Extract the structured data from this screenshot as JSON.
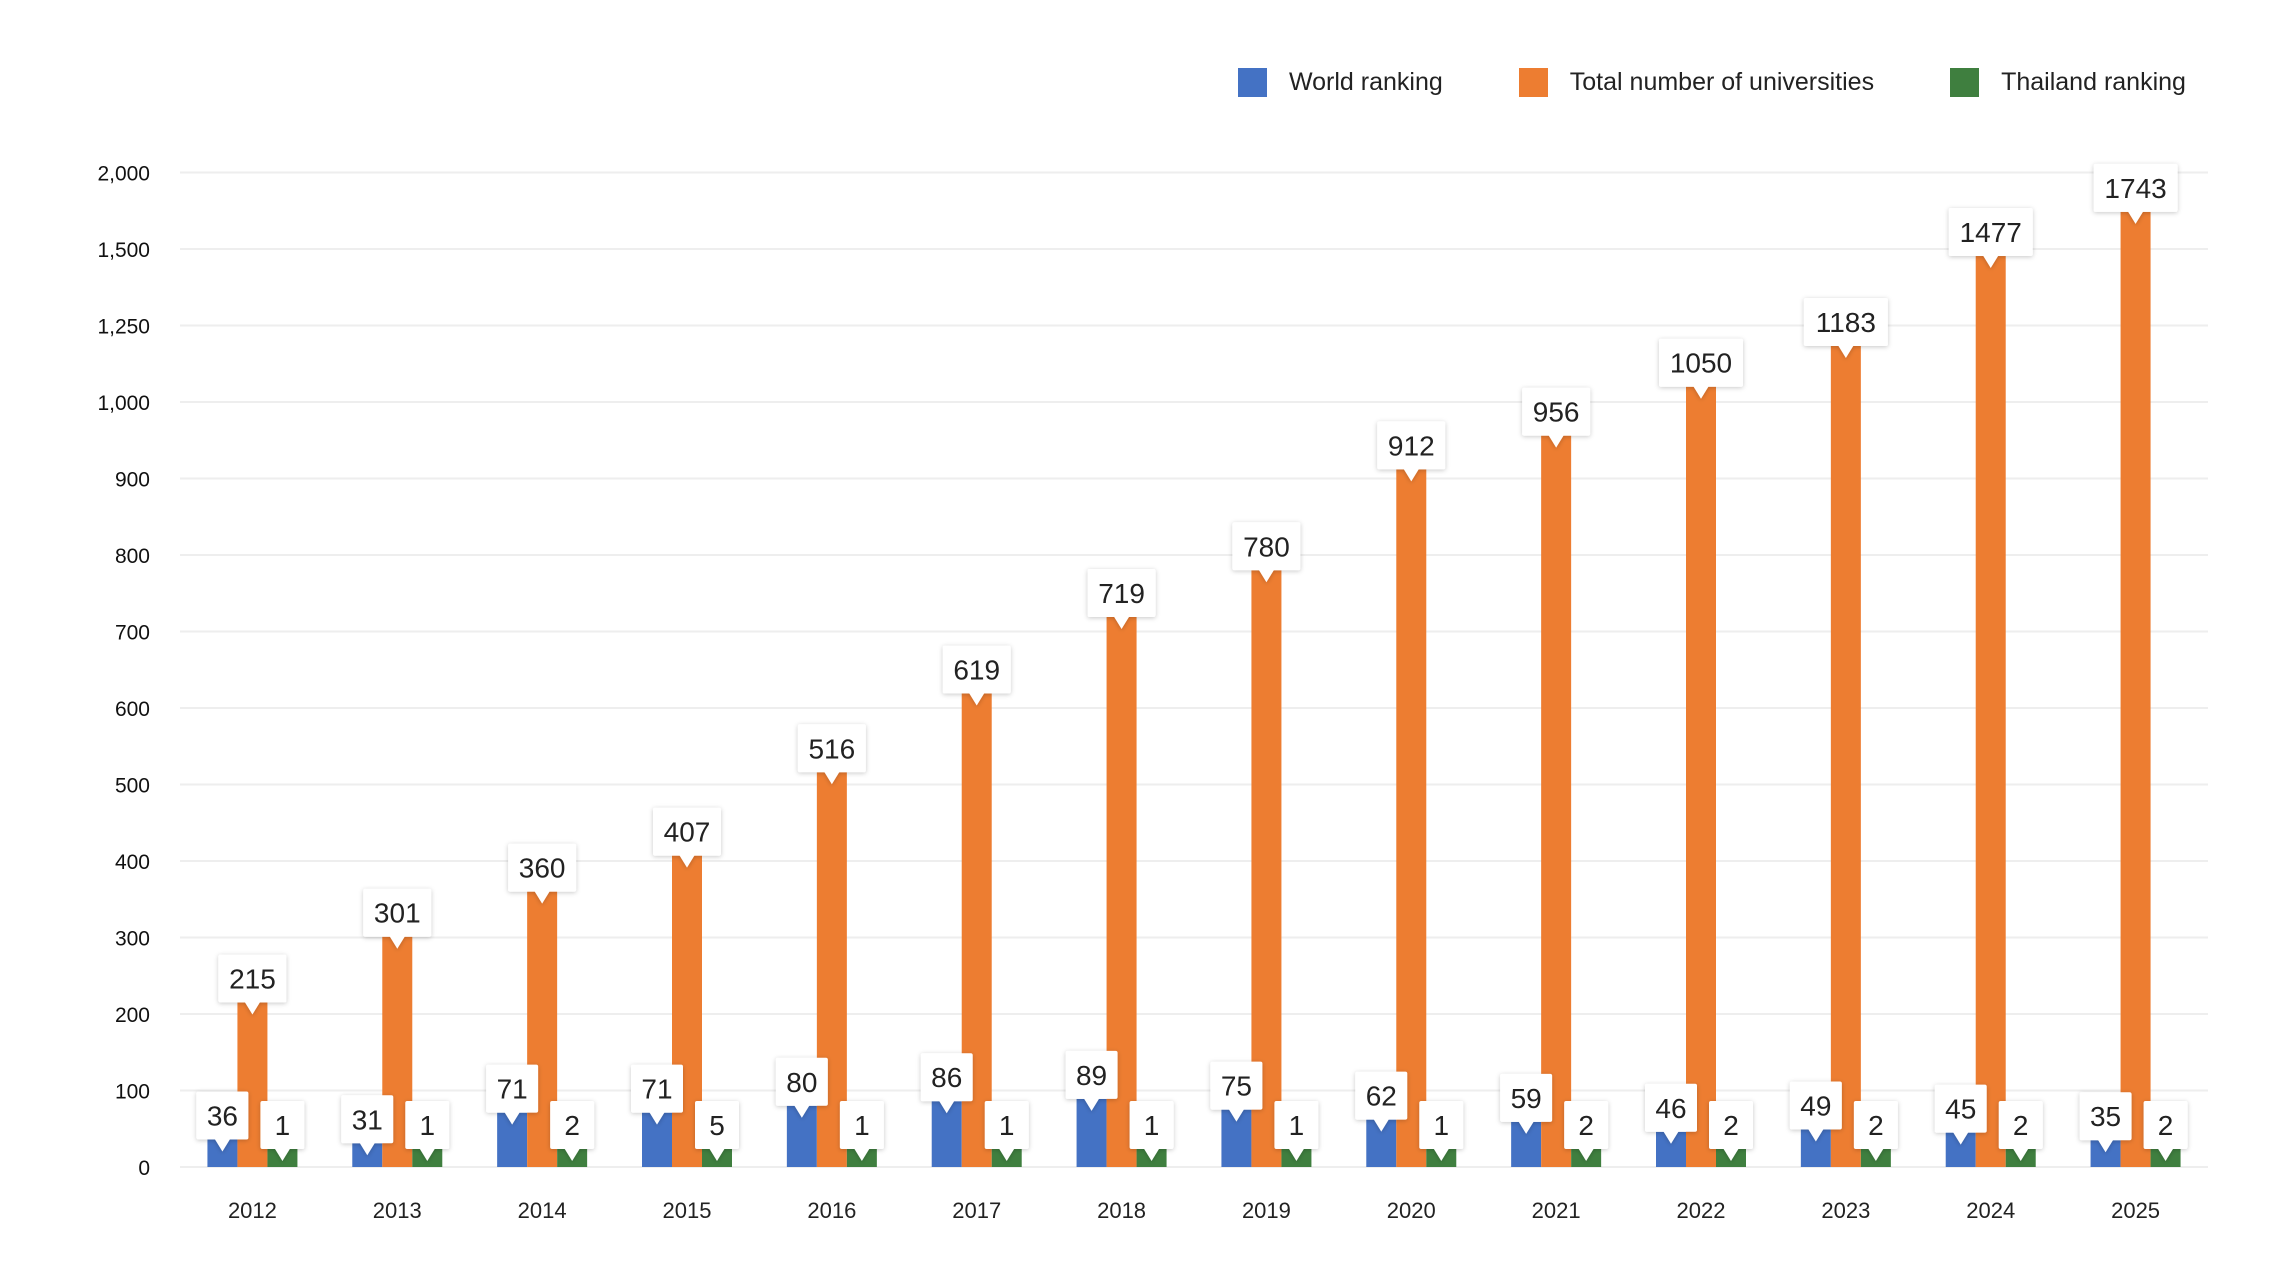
{
  "chart_data": {
    "type": "bar",
    "title": "",
    "xlabel": "",
    "ylabel": "",
    "categories": [
      "2012",
      "2013",
      "2014",
      "2015",
      "2016",
      "2017",
      "2018",
      "2019",
      "2020",
      "2021",
      "2022",
      "2023",
      "2024",
      "2025"
    ],
    "series": [
      {
        "name": "World ranking",
        "color": "#4472c4",
        "values": [
          36,
          31,
          71,
          71,
          80,
          86,
          89,
          75,
          62,
          59,
          46,
          49,
          45,
          35
        ]
      },
      {
        "name": "Total number of universities",
        "color": "#ed7d31",
        "values": [
          215,
          301,
          360,
          407,
          516,
          619,
          719,
          780,
          912,
          956,
          1050,
          1183,
          1477,
          1743
        ]
      },
      {
        "name": "Thailand ranking",
        "color": "#3f7f3f",
        "values": [
          1,
          1,
          2,
          5,
          1,
          1,
          1,
          1,
          1,
          2,
          2,
          2,
          2,
          2
        ]
      }
    ],
    "yticks": [
      0,
      100,
      200,
      300,
      400,
      500,
      600,
      700,
      800,
      900,
      1000,
      1250,
      1500,
      2000
    ],
    "ytick_labels": [
      "0",
      "100",
      "200",
      "300",
      "400",
      "500",
      "600",
      "700",
      "800",
      "900",
      "1,000",
      "1,250",
      "1,500",
      "2,000"
    ],
    "ylim": [
      0,
      2000
    ],
    "y_scale": "piecewise (evenly spaced ticks)",
    "grid": true,
    "data_labels": true,
    "legend_position": "top-right"
  }
}
